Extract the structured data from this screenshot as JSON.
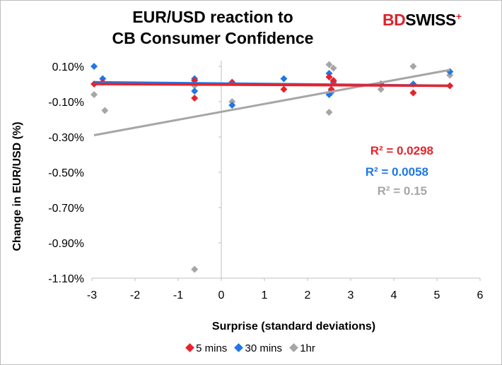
{
  "title_lines": [
    "EUR/USD reaction to",
    "CB Consumer Confidence"
  ],
  "logo": {
    "brand_a": "BD",
    "brand_b": "SWISS",
    "mark": "+"
  },
  "chart_data": {
    "type": "scatter",
    "title": "EUR/USD reaction to CB Consumer Confidence",
    "xlabel": "Surprise (standard deviations)",
    "ylabel": "Change in EUR/USD  (%)",
    "xlim": [
      -3,
      6
    ],
    "ylim": [
      -1.1,
      0.1
    ],
    "xticks": [
      -3,
      -2,
      -1,
      0,
      1,
      2,
      3,
      4,
      5,
      6
    ],
    "yticks": [
      0.1,
      -0.1,
      -0.3,
      -0.5,
      -0.7,
      -0.9,
      -1.1
    ],
    "ytick_labels": [
      "0.10%",
      "-0.10%",
      "-0.30%",
      "-0.50%",
      "-0.70%",
      "-0.90%",
      "-1.10%"
    ],
    "grid": false,
    "legend_position": "bottom",
    "series": [
      {
        "name": "5 mins",
        "color": "#e8222b",
        "points": [
          [
            -2.95,
            0.0
          ],
          [
            -2.75,
            0.01
          ],
          [
            -0.62,
            -0.08
          ],
          [
            -0.62,
            0.02
          ],
          [
            0.25,
            0.01
          ],
          [
            1.45,
            -0.03
          ],
          [
            2.5,
            0.04
          ],
          [
            2.55,
            -0.03
          ],
          [
            2.6,
            0.02
          ],
          [
            3.7,
            0.0
          ],
          [
            4.45,
            -0.05
          ],
          [
            5.3,
            -0.01
          ]
        ],
        "trendline": {
          "x": [
            -2.95,
            5.3
          ],
          "y": [
            0.0,
            -0.01
          ]
        },
        "r2_label": "R² = 0.0298"
      },
      {
        "name": "30 mins",
        "color": "#1f77e6",
        "points": [
          [
            -2.95,
            0.1
          ],
          [
            -2.75,
            0.03
          ],
          [
            -0.62,
            0.03
          ],
          [
            -0.62,
            -0.04
          ],
          [
            0.25,
            -0.12
          ],
          [
            1.45,
            0.03
          ],
          [
            2.5,
            0.06
          ],
          [
            2.55,
            -0.04
          ],
          [
            2.5,
            -0.06
          ],
          [
            2.6,
            0.01
          ],
          [
            4.45,
            0.0
          ],
          [
            5.3,
            0.07
          ]
        ],
        "trendline": {
          "x": [
            -2.95,
            5.3
          ],
          "y": [
            0.01,
            -0.01
          ]
        },
        "r2_label": "R² = 0.0058"
      },
      {
        "name": "1hr",
        "color": "#a6a6a6",
        "points": [
          [
            -2.95,
            -0.06
          ],
          [
            -2.7,
            -0.15
          ],
          [
            -0.62,
            -1.05
          ],
          [
            -0.62,
            -0.01
          ],
          [
            0.25,
            -0.1
          ],
          [
            2.5,
            0.11
          ],
          [
            2.6,
            0.09
          ],
          [
            2.5,
            -0.16
          ],
          [
            2.55,
            -0.05
          ],
          [
            3.7,
            -0.03
          ],
          [
            4.45,
            0.1
          ],
          [
            5.3,
            0.05
          ]
        ],
        "trendline": {
          "x": [
            -2.95,
            5.3
          ],
          "y": [
            -0.29,
            0.08
          ]
        },
        "r2_label": "R² = 0.15"
      }
    ]
  }
}
